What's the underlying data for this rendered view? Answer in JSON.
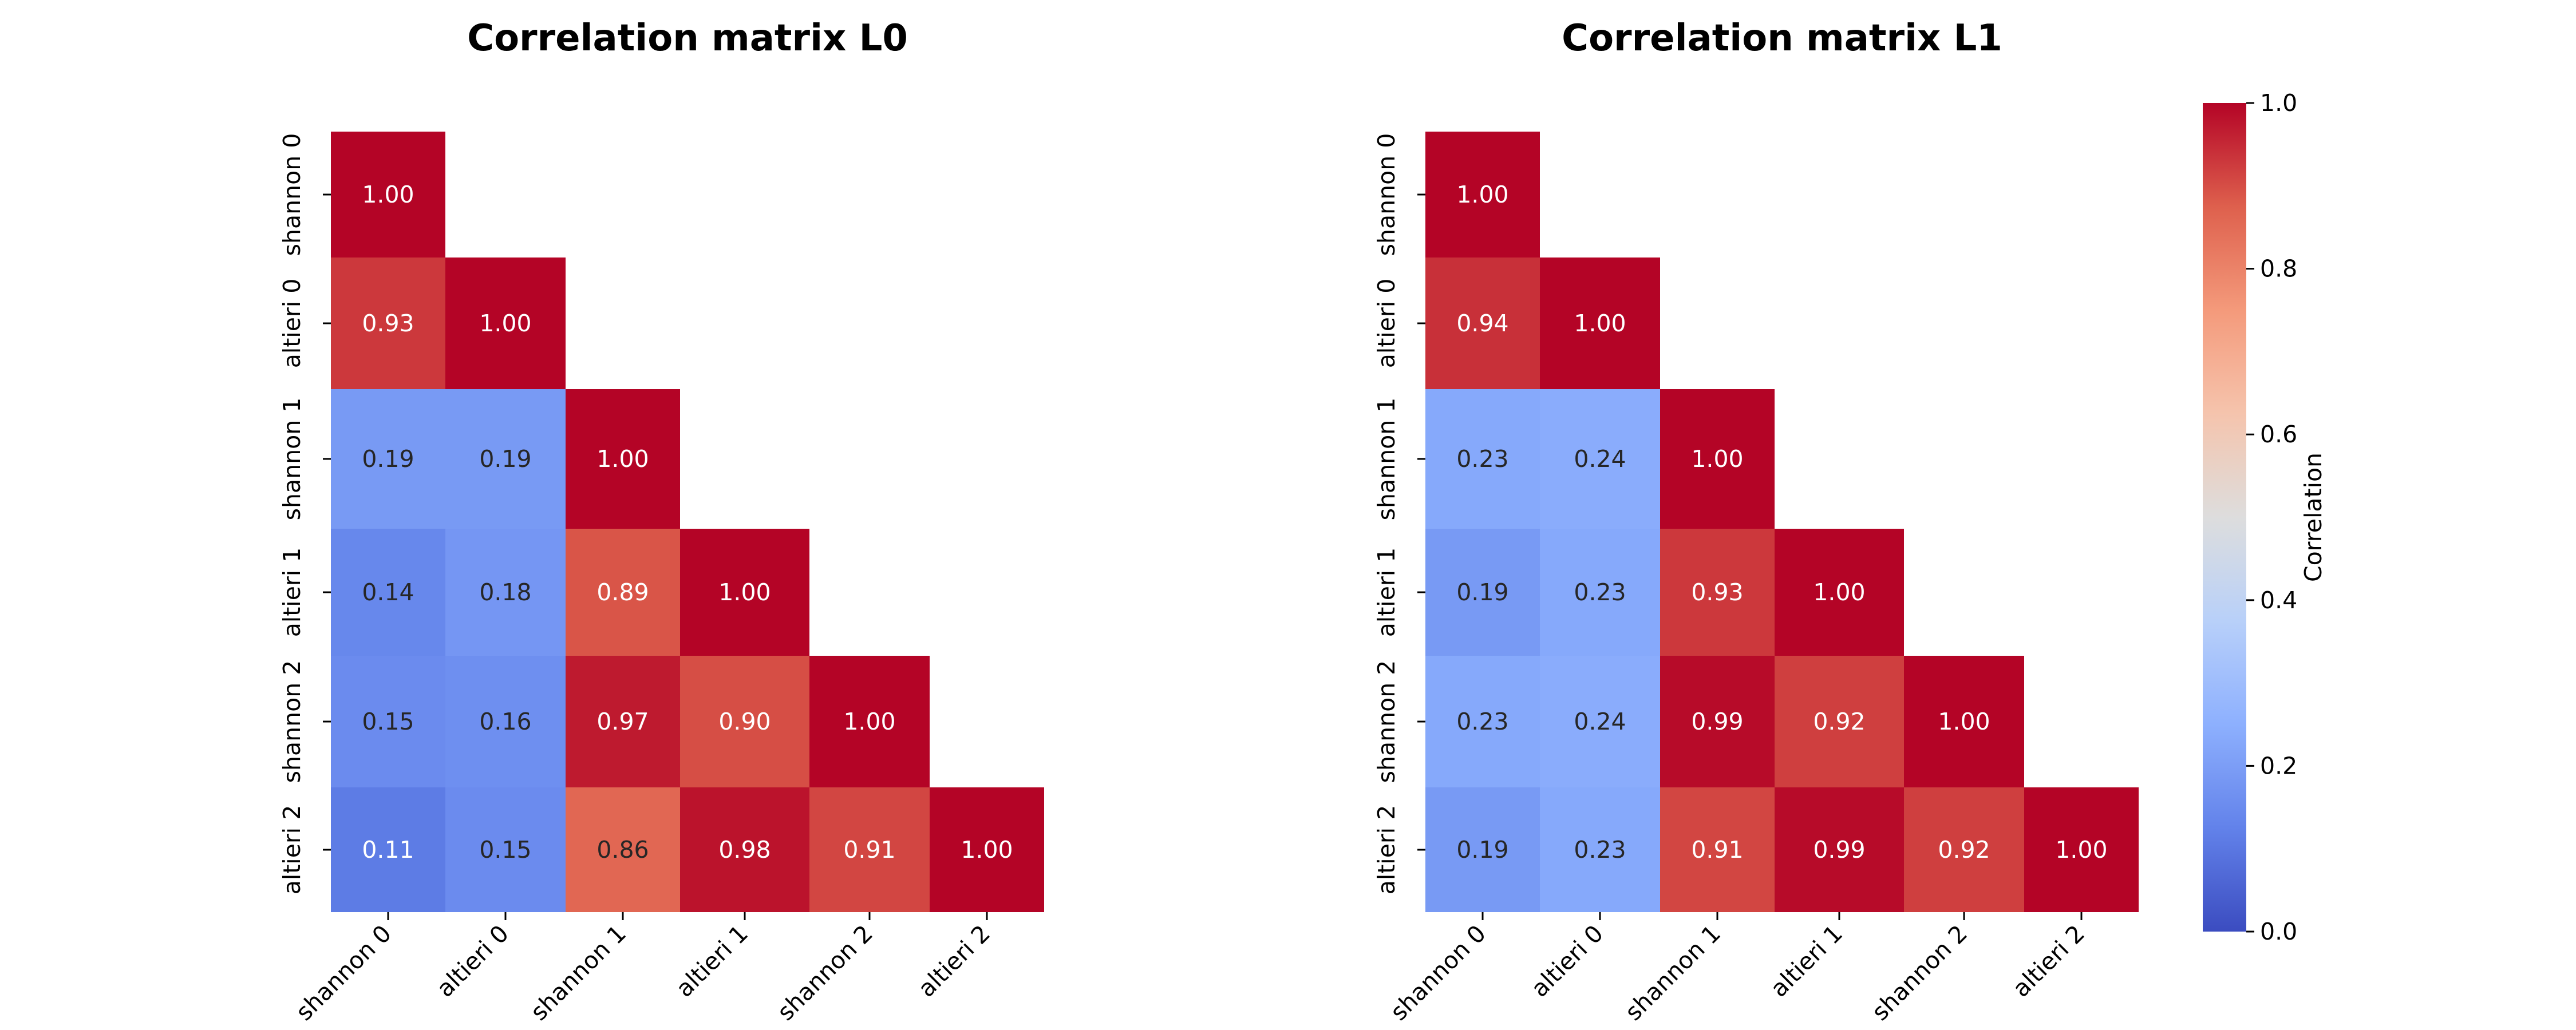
{
  "chart_data": [
    {
      "type": "heatmap",
      "title": "Correlation matrix L0",
      "labels": [
        "shannon 0",
        "altieri 0",
        "shannon 1",
        "altieri 1",
        "shannon 2",
        "altieri 2"
      ],
      "values": [
        [
          1.0
        ],
        [
          0.93,
          1.0
        ],
        [
          0.19,
          0.19,
          1.0
        ],
        [
          0.14,
          0.18,
          0.89,
          1.0
        ],
        [
          0.15,
          0.16,
          0.97,
          0.9,
          1.0
        ],
        [
          0.11,
          0.15,
          0.86,
          0.98,
          0.91,
          1.0
        ]
      ],
      "value_format": "0.00",
      "mask": "upper-triangle"
    },
    {
      "type": "heatmap",
      "title": "Correlation matrix L1",
      "labels": [
        "shannon 0",
        "altieri 0",
        "shannon 1",
        "altieri 1",
        "shannon 2",
        "altieri 2"
      ],
      "values": [
        [
          1.0
        ],
        [
          0.94,
          1.0
        ],
        [
          0.23,
          0.24,
          1.0
        ],
        [
          0.19,
          0.23,
          0.93,
          1.0
        ],
        [
          0.23,
          0.24,
          0.99,
          0.92,
          1.0
        ],
        [
          0.19,
          0.23,
          0.91,
          0.99,
          0.92,
          1.0
        ]
      ],
      "value_format": "0.00",
      "mask": "upper-triangle"
    }
  ],
  "colorbar": {
    "label": "Correlation",
    "colormap": "coolwarm",
    "range": [
      0.0,
      1.0
    ],
    "ticks": [
      "0.0",
      "0.2",
      "0.4",
      "0.6",
      "0.8",
      "1.0"
    ]
  },
  "colors": {
    "low": "#3b4cc0",
    "mid": "#dddddd",
    "high": "#b40426"
  }
}
